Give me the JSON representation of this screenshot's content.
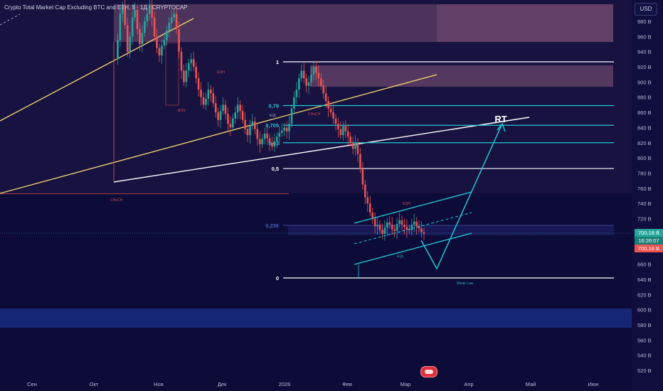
{
  "header": {
    "title": "Crypto Total Market Cap Excluding BTC and ETH, $ · 1Д · CRYPTOCAP",
    "currency": "USD"
  },
  "price_badges": {
    "last": "700,18 B",
    "countdown": "16:26:07",
    "prev": "700,16 B"
  },
  "colors": {
    "bg": "#0d0c38",
    "up": "#26a69a",
    "down": "#ef5350",
    "fib_teal": "#22c7d6",
    "white_line": "#ffffff",
    "yellow_line": "#f5d76e",
    "supply_zone": "#d98aa6",
    "demand_zone": "#1e3ca8"
  },
  "annotations": {
    "rt": "RT",
    "fib": [
      "1",
      "0,79",
      "0,705",
      "0,62",
      "0,5",
      "0,236",
      "0"
    ],
    "small": [
      "CHoCH",
      "EQH",
      "EQH",
      "BOS",
      "EQL",
      "CHoCH",
      "Weak Low",
      "EQL"
    ]
  },
  "chart_data": {
    "type": "candlestick",
    "title": "Crypto Total Market Cap Excluding BTC and ETH, $ · 1Д · CRYPTOCAP",
    "xlabel": "",
    "ylabel": "",
    "x_ticks": [
      "Сен",
      "Окт",
      "Ноя",
      "Дек",
      "2026",
      "Фев",
      "Мар",
      "Апр",
      "Май",
      "Июн"
    ],
    "y_ticks": [
      "520 B",
      "540 B",
      "560 B",
      "580 B",
      "600 B",
      "620 B",
      "640 B",
      "660 B",
      "680 B",
      "700 B",
      "720 B",
      "740 B",
      "760 B",
      "780 B",
      "800 B",
      "820 B",
      "840 B",
      "860 B",
      "880 B",
      "900 B",
      "920 B",
      "940 B",
      "960 B",
      "980 B"
    ],
    "ylim": [
      510,
      1005
    ],
    "last_price": 700.18,
    "fib_levels": [
      {
        "label": "1",
        "value": 921
      },
      {
        "label": "0,79",
        "value": 869
      },
      {
        "label": "0,705",
        "value": 843
      },
      {
        "label": "0,62",
        "value": 820
      },
      {
        "label": "0,5",
        "value": 786
      },
      {
        "label": "0,236",
        "value": 711
      },
      {
        "label": "0",
        "value": 643
      }
    ],
    "candles_close": [
      930,
      955,
      990,
      1000,
      975,
      940,
      960,
      985,
      995,
      970,
      950,
      965,
      980,
      990,
      1002,
      985,
      960,
      945,
      935,
      948,
      955,
      968,
      978,
      985,
      990,
      970,
      940,
      915,
      900,
      915,
      925,
      930,
      920,
      905,
      890,
      880,
      870,
      878,
      890,
      885,
      872,
      860,
      850,
      862,
      870,
      858,
      845,
      840,
      852,
      860,
      870,
      862,
      850,
      838,
      830,
      842,
      848,
      838,
      825,
      818,
      825,
      832,
      826,
      820,
      815,
      822,
      828,
      833,
      836,
      840,
      835,
      845,
      865,
      880,
      890,
      905,
      915,
      905,
      895,
      900,
      910,
      920,
      912,
      905,
      895,
      885,
      875,
      865,
      860,
      852,
      845,
      838,
      830,
      842,
      835,
      828,
      820,
      812,
      820,
      805,
      785,
      765,
      748,
      740,
      728,
      720,
      710,
      712,
      705,
      700,
      708,
      715,
      712,
      706,
      704,
      713,
      718,
      712,
      709,
      706,
      705,
      712,
      716,
      710,
      707,
      702,
      700
    ],
    "grid": false,
    "legend": "none"
  }
}
